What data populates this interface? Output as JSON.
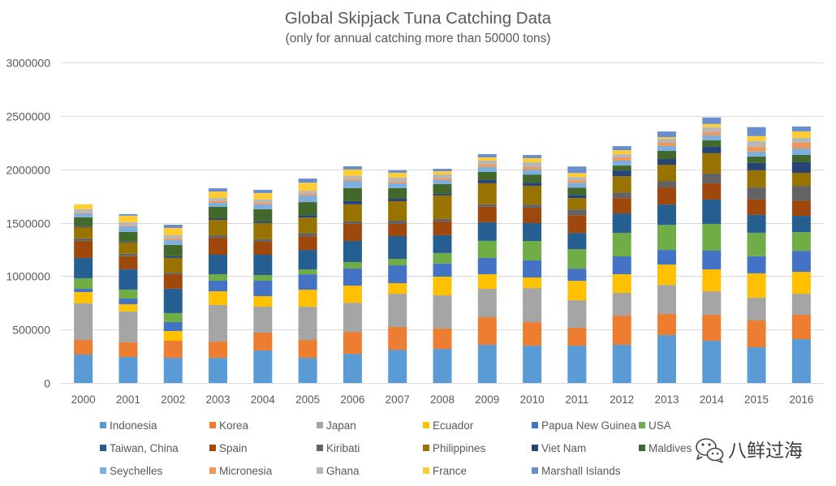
{
  "chart_data": {
    "type": "bar",
    "stacked": true,
    "title": "Global Skipjack Tuna Catching Data",
    "subtitle": "(only for annual catching more than 50000 tons)",
    "xlabel": "",
    "ylabel": "",
    "ylim": [
      0,
      3000000
    ],
    "yticks": [
      0,
      500000,
      1000000,
      1500000,
      2000000,
      2500000,
      3000000
    ],
    "grid": true,
    "legend_position": "bottom",
    "categories": [
      "2000",
      "2001",
      "2002",
      "2003",
      "2004",
      "2005",
      "2006",
      "2007",
      "2008",
      "2009",
      "2010",
      "2011",
      "2012",
      "2013",
      "2014",
      "2015",
      "2016"
    ],
    "series": [
      {
        "name": "Indonesia",
        "color": "#5B9BD5",
        "values": [
          266000,
          243000,
          235000,
          235000,
          304000,
          235000,
          273000,
          311000,
          319000,
          357000,
          349000,
          349000,
          357000,
          448000,
          395000,
          334000,
          410000
        ]
      },
      {
        "name": "Korea",
        "color": "#ED7D31",
        "values": [
          137000,
          137000,
          160000,
          152000,
          167000,
          167000,
          205000,
          213000,
          190000,
          258000,
          220000,
          167000,
          273000,
          197000,
          243000,
          251000,
          228000
        ]
      },
      {
        "name": "Japan",
        "color": "#A5A5A5",
        "values": [
          342000,
          289000,
          0,
          342000,
          243000,
          311000,
          273000,
          311000,
          311000,
          266000,
          319000,
          258000,
          213000,
          273000,
          220000,
          213000,
          197000
        ]
      },
      {
        "name": "Ecuador",
        "color": "#FFC000",
        "values": [
          106000,
          68000,
          91000,
          129000,
          99000,
          160000,
          160000,
          99000,
          175000,
          137000,
          99000,
          182000,
          175000,
          190000,
          205000,
          228000,
          205000
        ]
      },
      {
        "name": "Papua New Guinea",
        "color": "#4472C4",
        "values": [
          30000,
          53000,
          84000,
          99000,
          144000,
          144000,
          160000,
          167000,
          122000,
          152000,
          160000,
          114000,
          167000,
          137000,
          175000,
          160000,
          197000
        ]
      },
      {
        "name": "USA",
        "color": "#70AD47",
        "values": [
          99000,
          84000,
          84000,
          61000,
          53000,
          46000,
          61000,
          61000,
          99000,
          160000,
          182000,
          182000,
          220000,
          235000,
          251000,
          220000,
          175000
        ]
      },
      {
        "name": "Taiwan, China",
        "color": "#255E91",
        "values": [
          190000,
          190000,
          228000,
          182000,
          190000,
          182000,
          197000,
          213000,
          167000,
          175000,
          167000,
          152000,
          182000,
          190000,
          228000,
          167000,
          152000
        ]
      },
      {
        "name": "Spain",
        "color": "#9E480E",
        "values": [
          160000,
          122000,
          137000,
          160000,
          122000,
          129000,
          160000,
          114000,
          129000,
          144000,
          144000,
          167000,
          144000,
          160000,
          152000,
          144000,
          144000
        ]
      },
      {
        "name": "Kiribati",
        "color": "#636363",
        "values": [
          23000,
          23000,
          15000,
          23000,
          23000,
          30000,
          23000,
          30000,
          23000,
          23000,
          30000,
          53000,
          53000,
          61000,
          91000,
          114000,
          137000
        ]
      },
      {
        "name": "Philippines",
        "color": "#997300",
        "values": [
          106000,
          106000,
          137000,
          144000,
          152000,
          144000,
          160000,
          182000,
          220000,
          197000,
          175000,
          106000,
          152000,
          152000,
          190000,
          160000,
          122000
        ]
      },
      {
        "name": "Viet Nam",
        "color": "#264478",
        "values": [
          8000,
          8000,
          15000,
          15000,
          15000,
          23000,
          30000,
          23000,
          15000,
          30000,
          30000,
          30000,
          53000,
          53000,
          61000,
          68000,
          99000
        ]
      },
      {
        "name": "Maldives",
        "color": "#43682B",
        "values": [
          84000,
          91000,
          106000,
          106000,
          114000,
          122000,
          122000,
          99000,
          91000,
          76000,
          76000,
          68000,
          46000,
          76000,
          61000,
          61000,
          68000
        ]
      },
      {
        "name": "Seychelles",
        "color": "#7CAFDD",
        "values": [
          38000,
          53000,
          46000,
          38000,
          46000,
          61000,
          68000,
          46000,
          38000,
          46000,
          46000,
          46000,
          46000,
          46000,
          46000,
          46000,
          61000
        ]
      },
      {
        "name": "Micronesia",
        "color": "#F1975A",
        "values": [
          8000,
          8000,
          15000,
          15000,
          15000,
          15000,
          15000,
          15000,
          15000,
          23000,
          23000,
          23000,
          30000,
          30000,
          30000,
          46000,
          53000
        ]
      },
      {
        "name": "Ghana",
        "color": "#B7B7B7",
        "values": [
          30000,
          30000,
          30000,
          30000,
          30000,
          30000,
          30000,
          38000,
          38000,
          38000,
          46000,
          30000,
          30000,
          38000,
          46000,
          53000,
          46000
        ]
      },
      {
        "name": "France",
        "color": "#FFCD33",
        "values": [
          46000,
          61000,
          68000,
          61000,
          61000,
          76000,
          61000,
          46000,
          30000,
          30000,
          38000,
          38000,
          38000,
          15000,
          30000,
          46000,
          61000
        ]
      },
      {
        "name": "Marshall Islands",
        "color": "#698ED0",
        "values": [
          0,
          15000,
          30000,
          30000,
          30000,
          38000,
          30000,
          23000,
          23000,
          30000,
          30000,
          61000,
          38000,
          53000,
          61000,
          84000,
          46000
        ]
      }
    ]
  },
  "watermark": {
    "text": "八鲜过海",
    "icon": "wechat-icon"
  }
}
